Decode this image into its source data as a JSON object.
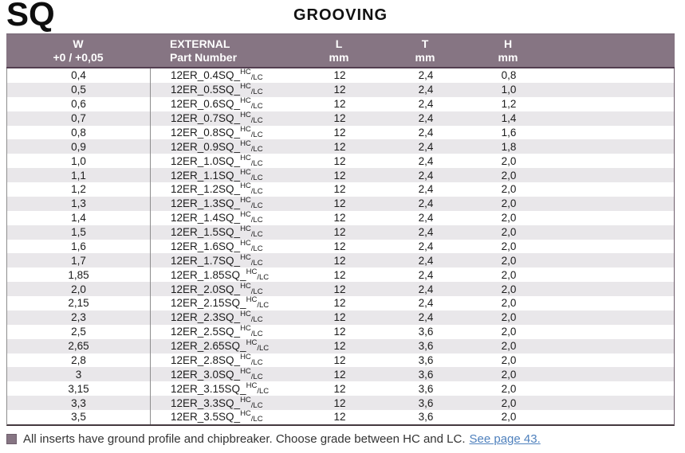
{
  "page": {
    "series_code": "SQ",
    "title": "GROOVING"
  },
  "table": {
    "headers": {
      "w_line1": "W",
      "w_line2": "+0 / +0,05",
      "part_line1": "EXTERNAL",
      "part_line2": "Part Number",
      "l_line1": "L",
      "l_line2": "mm",
      "t_line1": "T",
      "t_line2": "mm",
      "h_line1": "H",
      "h_line2": "mm"
    },
    "grade_sup": "HC",
    "grade_sub": "/LC",
    "rows": [
      {
        "w": "0,4",
        "part": "12ER_0.4SQ_",
        "l": "12",
        "t": "2,4",
        "h": "0,8"
      },
      {
        "w": "0,5",
        "part": "12ER_0.5SQ_",
        "l": "12",
        "t": "2,4",
        "h": "1,0"
      },
      {
        "w": "0,6",
        "part": "12ER_0.6SQ_",
        "l": "12",
        "t": "2,4",
        "h": "1,2"
      },
      {
        "w": "0,7",
        "part": "12ER_0.7SQ_",
        "l": "12",
        "t": "2,4",
        "h": "1,4"
      },
      {
        "w": "0,8",
        "part": "12ER_0.8SQ_",
        "l": "12",
        "t": "2,4",
        "h": "1,6"
      },
      {
        "w": "0,9",
        "part": "12ER_0.9SQ_",
        "l": "12",
        "t": "2,4",
        "h": "1,8"
      },
      {
        "w": "1,0",
        "part": "12ER_1.0SQ_",
        "l": "12",
        "t": "2,4",
        "h": "2,0"
      },
      {
        "w": "1,1",
        "part": "12ER_1.1SQ_",
        "l": "12",
        "t": "2,4",
        "h": "2,0"
      },
      {
        "w": "1,2",
        "part": "12ER_1.2SQ_",
        "l": "12",
        "t": "2,4",
        "h": "2,0"
      },
      {
        "w": "1,3",
        "part": "12ER_1.3SQ_",
        "l": "12",
        "t": "2,4",
        "h": "2,0"
      },
      {
        "w": "1,4",
        "part": "12ER_1.4SQ_",
        "l": "12",
        "t": "2,4",
        "h": "2,0"
      },
      {
        "w": "1,5",
        "part": "12ER_1.5SQ_",
        "l": "12",
        "t": "2,4",
        "h": "2,0"
      },
      {
        "w": "1,6",
        "part": "12ER_1.6SQ_",
        "l": "12",
        "t": "2,4",
        "h": "2,0"
      },
      {
        "w": "1,7",
        "part": "12ER_1.7SQ_",
        "l": "12",
        "t": "2,4",
        "h": "2,0"
      },
      {
        "w": "1,85",
        "part": "12ER_1.85SQ_",
        "l": "12",
        "t": "2,4",
        "h": "2,0"
      },
      {
        "w": "2,0",
        "part": "12ER_2.0SQ_",
        "l": "12",
        "t": "2,4",
        "h": "2,0"
      },
      {
        "w": "2,15",
        "part": "12ER_2.15SQ_",
        "l": "12",
        "t": "2,4",
        "h": "2,0"
      },
      {
        "w": "2,3",
        "part": "12ER_2.3SQ_",
        "l": "12",
        "t": "2,4",
        "h": "2,0"
      },
      {
        "w": "2,5",
        "part": "12ER_2.5SQ_",
        "l": "12",
        "t": "3,6",
        "h": "2,0"
      },
      {
        "w": "2,65",
        "part": "12ER_2.65SQ_",
        "l": "12",
        "t": "3,6",
        "h": "2,0"
      },
      {
        "w": "2,8",
        "part": "12ER_2.8SQ_",
        "l": "12",
        "t": "3,6",
        "h": "2,0"
      },
      {
        "w": "3",
        "part": "12ER_3.0SQ_",
        "l": "12",
        "t": "3,6",
        "h": "2,0"
      },
      {
        "w": "3,15",
        "part": "12ER_3.15SQ_",
        "l": "12",
        "t": "3,6",
        "h": "2,0"
      },
      {
        "w": "3,3",
        "part": "12ER_3.3SQ_",
        "l": "12",
        "t": "3,6",
        "h": "2,0"
      },
      {
        "w": "3,5",
        "part": "12ER_3.5SQ_",
        "l": "12",
        "t": "3,6",
        "h": "2,0"
      }
    ]
  },
  "footer": {
    "note": "All inserts have ground profile and chipbreaker. Choose grade between HC and LC.",
    "link_text": "See page 43."
  },
  "colors": {
    "header_bg": "#867583",
    "header_separator": "#533e50",
    "alt_row_bg": "#e9e7ea",
    "link": "#4f81bd"
  }
}
